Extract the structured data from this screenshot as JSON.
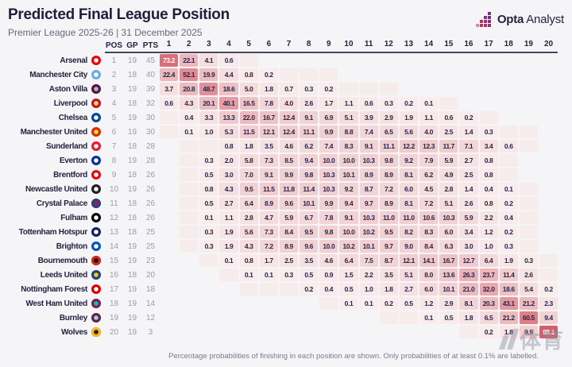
{
  "header": {
    "title": "Predicted Final League Position",
    "subtitle": "Premier League 2025-26 | 31 December 2025",
    "brand": {
      "bold": "Opta",
      "regular": "Analyst",
      "gradient": [
        "#d92b55",
        "#7c2c85"
      ]
    }
  },
  "footer": {
    "note": "Percentage probabilities of finishing in each position are shown. Only probabilities of at least 0.1% are labelled."
  },
  "watermark": {
    "text": "体育"
  },
  "chart_data": {
    "type": "heatmap",
    "title": "Predicted Final League Position",
    "subtitle": "Premier League 2025-26 | 31 December 2025",
    "note": "Percentage probabilities of finishing in each position are shown. Only probabilities of at least 0.1% are labelled.",
    "stat_headers": [
      "POS",
      "GP",
      "PTS"
    ],
    "x_labels": [
      "1",
      "2",
      "3",
      "4",
      "5",
      "6",
      "7",
      "8",
      "9",
      "10",
      "11",
      "12",
      "13",
      "14",
      "15",
      "16",
      "17",
      "18",
      "19",
      "20"
    ],
    "color_scale": {
      "low": "#faeeee",
      "high": "#d24f5c",
      "trace": "#f7ecec",
      "text_dark": "#26264a",
      "text_light": "#ffffff",
      "white_text_threshold": 70
    },
    "rows": [
      {
        "team": "Arsenal",
        "crest": [
          "#ef0107",
          "#ffffff"
        ],
        "pos": 1,
        "gp": 19,
        "pts": 45,
        "probs": {
          "1": 73.2,
          "2": 22.1,
          "3": 4.1,
          "4": 0.6
        },
        "trace": [
          5
        ]
      },
      {
        "team": "Manchester City",
        "crest": [
          "#6cabdd",
          "#ffffff"
        ],
        "pos": 2,
        "gp": 18,
        "pts": 40,
        "probs": {
          "1": 22.4,
          "2": 52.1,
          "3": 19.9,
          "4": 4.4,
          "5": 0.8,
          "6": 0.2
        },
        "trace": [
          7,
          8,
          9
        ]
      },
      {
        "team": "Aston Villa",
        "crest": [
          "#670e36",
          "#95bfe5"
        ],
        "pos": 3,
        "gp": 19,
        "pts": 39,
        "probs": {
          "1": 3.7,
          "2": 20.8,
          "3": 48.7,
          "4": 18.6,
          "5": 5.0,
          "6": 1.8,
          "7": 0.7,
          "8": 0.3,
          "9": 0.2
        },
        "trace": [
          10,
          11,
          12
        ]
      },
      {
        "team": "Liverpool",
        "crest": [
          "#c8102e",
          "#f6eb61"
        ],
        "pos": 4,
        "gp": 18,
        "pts": 32,
        "probs": {
          "1": 0.6,
          "2": 4.3,
          "3": 20.1,
          "4": 40.1,
          "5": 16.5,
          "6": 7.8,
          "7": 4.0,
          "8": 2.6,
          "9": 1.7,
          "10": 1.1,
          "11": 0.6,
          "12": 0.3,
          "13": 0.2,
          "14": 0.1
        },
        "trace": [
          15
        ]
      },
      {
        "team": "Chelsea",
        "crest": [
          "#034694",
          "#ffffff"
        ],
        "pos": 5,
        "gp": 19,
        "pts": 30,
        "probs": {
          "2": 0.4,
          "3": 3.3,
          "4": 13.3,
          "5": 22.0,
          "6": 16.7,
          "7": 12.4,
          "8": 9.1,
          "9": 6.9,
          "10": 5.1,
          "11": 3.9,
          "12": 2.9,
          "13": 1.9,
          "14": 1.1,
          "15": 0.6,
          "16": 0.2
        },
        "trace": [
          1,
          17
        ]
      },
      {
        "team": "Manchester United",
        "crest": [
          "#da291c",
          "#fbe122"
        ],
        "pos": 6,
        "gp": 19,
        "pts": 30,
        "probs": {
          "2": 0.1,
          "3": 1.0,
          "4": 5.3,
          "5": 11.5,
          "6": 12.1,
          "7": 12.4,
          "8": 11.1,
          "9": 9.9,
          "10": 8.8,
          "11": 7.4,
          "12": 6.5,
          "13": 5.6,
          "14": 4.0,
          "15": 2.5,
          "16": 1.4,
          "17": 0.3
        },
        "trace": [
          1,
          18,
          19
        ]
      },
      {
        "team": "Sunderland",
        "crest": [
          "#eb172b",
          "#ffffff"
        ],
        "pos": 7,
        "gp": 18,
        "pts": 28,
        "probs": {
          "4": 0.8,
          "5": 1.8,
          "6": 3.5,
          "7": 4.6,
          "8": 6.2,
          "9": 7.4,
          "10": 8.3,
          "11": 9.1,
          "12": 11.1,
          "13": 12.2,
          "14": 12.3,
          "15": 11.7,
          "16": 7.1,
          "17": 3.4,
          "18": 0.6
        },
        "trace": [
          2,
          3,
          19
        ]
      },
      {
        "team": "Everton",
        "crest": [
          "#003399",
          "#ffffff"
        ],
        "pos": 8,
        "gp": 19,
        "pts": 28,
        "probs": {
          "3": 0.3,
          "4": 2.0,
          "5": 5.8,
          "6": 7.3,
          "7": 8.5,
          "8": 9.4,
          "9": 10.0,
          "10": 10.0,
          "11": 10.3,
          "12": 9.8,
          "13": 9.2,
          "14": 7.9,
          "15": 5.9,
          "16": 2.7,
          "17": 0.8
        },
        "trace": [
          2,
          18
        ]
      },
      {
        "team": "Brentford",
        "crest": [
          "#e30613",
          "#ffffff"
        ],
        "pos": 9,
        "gp": 18,
        "pts": 26,
        "probs": {
          "3": 0.5,
          "4": 3.0,
          "5": 7.0,
          "6": 9.1,
          "7": 9.9,
          "8": 9.8,
          "9": 10.3,
          "10": 10.1,
          "11": 8.9,
          "12": 8.9,
          "13": 8.1,
          "14": 6.2,
          "15": 4.9,
          "16": 2.5,
          "17": 0.8
        },
        "trace": [
          2,
          18
        ]
      },
      {
        "team": "Newcastle United",
        "crest": [
          "#241f20",
          "#ffffff"
        ],
        "pos": 10,
        "gp": 19,
        "pts": 26,
        "probs": {
          "3": 0.8,
          "4": 4.3,
          "5": 9.5,
          "6": 11.5,
          "7": 11.8,
          "8": 11.4,
          "9": 10.3,
          "10": 9.2,
          "11": 8.7,
          "12": 7.2,
          "13": 6.0,
          "14": 4.5,
          "15": 2.8,
          "16": 1.4,
          "17": 0.4,
          "18": 0.1
        },
        "trace": [
          2,
          19
        ]
      },
      {
        "team": "Crystal Palace",
        "crest": [
          "#1b458f",
          "#c4122e"
        ],
        "pos": 11,
        "gp": 18,
        "pts": 26,
        "probs": {
          "3": 0.5,
          "4": 2.7,
          "5": 6.4,
          "6": 8.9,
          "7": 9.6,
          "8": 10.1,
          "9": 9.9,
          "10": 9.4,
          "11": 9.7,
          "12": 8.9,
          "13": 8.1,
          "14": 7.2,
          "15": 5.1,
          "16": 2.6,
          "17": 0.8,
          "18": 0.2
        },
        "trace": [
          2,
          19
        ]
      },
      {
        "team": "Fulham",
        "crest": [
          "#000000",
          "#ffffff"
        ],
        "pos": 12,
        "gp": 18,
        "pts": 26,
        "probs": {
          "3": 0.1,
          "4": 1.1,
          "5": 2.8,
          "6": 4.7,
          "7": 5.9,
          "8": 6.7,
          "9": 7.8,
          "10": 9.1,
          "11": 10.3,
          "12": 11.0,
          "13": 11.0,
          "14": 10.6,
          "15": 10.3,
          "16": 5.9,
          "17": 2.2,
          "18": 0.4
        },
        "trace": [
          2,
          19
        ]
      },
      {
        "team": "Tottenham Hotspur",
        "crest": [
          "#132257",
          "#ffffff"
        ],
        "pos": 13,
        "gp": 18,
        "pts": 25,
        "probs": {
          "3": 0.3,
          "4": 1.9,
          "5": 5.6,
          "6": 7.3,
          "7": 8.4,
          "8": 9.5,
          "9": 9.8,
          "10": 10.0,
          "11": 10.2,
          "12": 9.5,
          "13": 8.2,
          "14": 8.3,
          "15": 6.0,
          "16": 3.4,
          "17": 1.2,
          "18": 0.2
        },
        "trace": [
          2,
          19
        ]
      },
      {
        "team": "Brighton",
        "crest": [
          "#0057b8",
          "#ffffff"
        ],
        "pos": 14,
        "gp": 19,
        "pts": 25,
        "probs": {
          "3": 0.3,
          "4": 1.9,
          "5": 4.3,
          "6": 7.2,
          "7": 8.9,
          "8": 9.6,
          "9": 10.0,
          "10": 10.2,
          "11": 10.1,
          "12": 9.7,
          "13": 9.0,
          "14": 8.4,
          "15": 6.3,
          "16": 3.0,
          "17": 1.0,
          "18": 0.3
        },
        "trace": [
          2,
          19
        ]
      },
      {
        "team": "Bournemouth",
        "crest": [
          "#da291c",
          "#000000"
        ],
        "pos": 15,
        "gp": 19,
        "pts": 23,
        "probs": {
          "4": 0.1,
          "5": 0.8,
          "6": 1.7,
          "7": 2.5,
          "8": 3.5,
          "9": 4.6,
          "10": 6.4,
          "11": 7.5,
          "12": 8.7,
          "13": 12.1,
          "14": 14.1,
          "15": 16.7,
          "16": 12.7,
          "17": 6.4,
          "18": 1.9,
          "19": 0.3
        },
        "trace": [
          3,
          20
        ]
      },
      {
        "team": "Leeds United",
        "crest": [
          "#1d428a",
          "#ffcd00"
        ],
        "pos": 16,
        "gp": 18,
        "pts": 20,
        "probs": {
          "5": 0.1,
          "6": 0.1,
          "7": 0.3,
          "8": 0.5,
          "9": 0.9,
          "10": 1.5,
          "11": 2.2,
          "12": 3.5,
          "13": 5.1,
          "14": 8.0,
          "15": 13.6,
          "16": 26.3,
          "17": 23.7,
          "18": 11.4,
          "19": 2.6
        },
        "trace": [
          4,
          20
        ]
      },
      {
        "team": "Nottingham Forest",
        "crest": [
          "#dd0000",
          "#ffffff"
        ],
        "pos": 17,
        "gp": 19,
        "pts": 18,
        "probs": {
          "8": 0.2,
          "9": 0.4,
          "10": 0.5,
          "11": 1.0,
          "12": 1.8,
          "13": 2.7,
          "14": 6.0,
          "15": 10.1,
          "16": 21.0,
          "17": 32.0,
          "18": 18.6,
          "19": 5.4,
          "20": 0.2
        },
        "trace": [
          5,
          6,
          7
        ]
      },
      {
        "team": "West Ham United",
        "crest": [
          "#7a263a",
          "#1bb1e7"
        ],
        "pos": 18,
        "gp": 19,
        "pts": 14,
        "probs": {
          "10": 0.1,
          "11": 0.1,
          "12": 0.2,
          "13": 0.5,
          "14": 1.2,
          "15": 2.9,
          "16": 8.1,
          "17": 20.3,
          "18": 43.1,
          "19": 21.2,
          "20": 2.3
        },
        "trace": [
          9
        ]
      },
      {
        "team": "Burnley",
        "crest": [
          "#6c1d45",
          "#99d6ea"
        ],
        "pos": 19,
        "gp": 19,
        "pts": 12,
        "probs": {
          "14": 0.1,
          "15": 0.5,
          "16": 1.8,
          "17": 6.5,
          "18": 21.2,
          "19": 60.5,
          "20": 9.4
        },
        "trace": [
          12,
          13
        ]
      },
      {
        "team": "Wolves",
        "crest": [
          "#fdb913",
          "#231f20"
        ],
        "pos": 20,
        "gp": 19,
        "pts": 3,
        "probs": {
          "17": 0.2,
          "18": 1.8,
          "19": 9.9,
          "20": 88.1
        },
        "trace": [
          16
        ]
      }
    ]
  }
}
